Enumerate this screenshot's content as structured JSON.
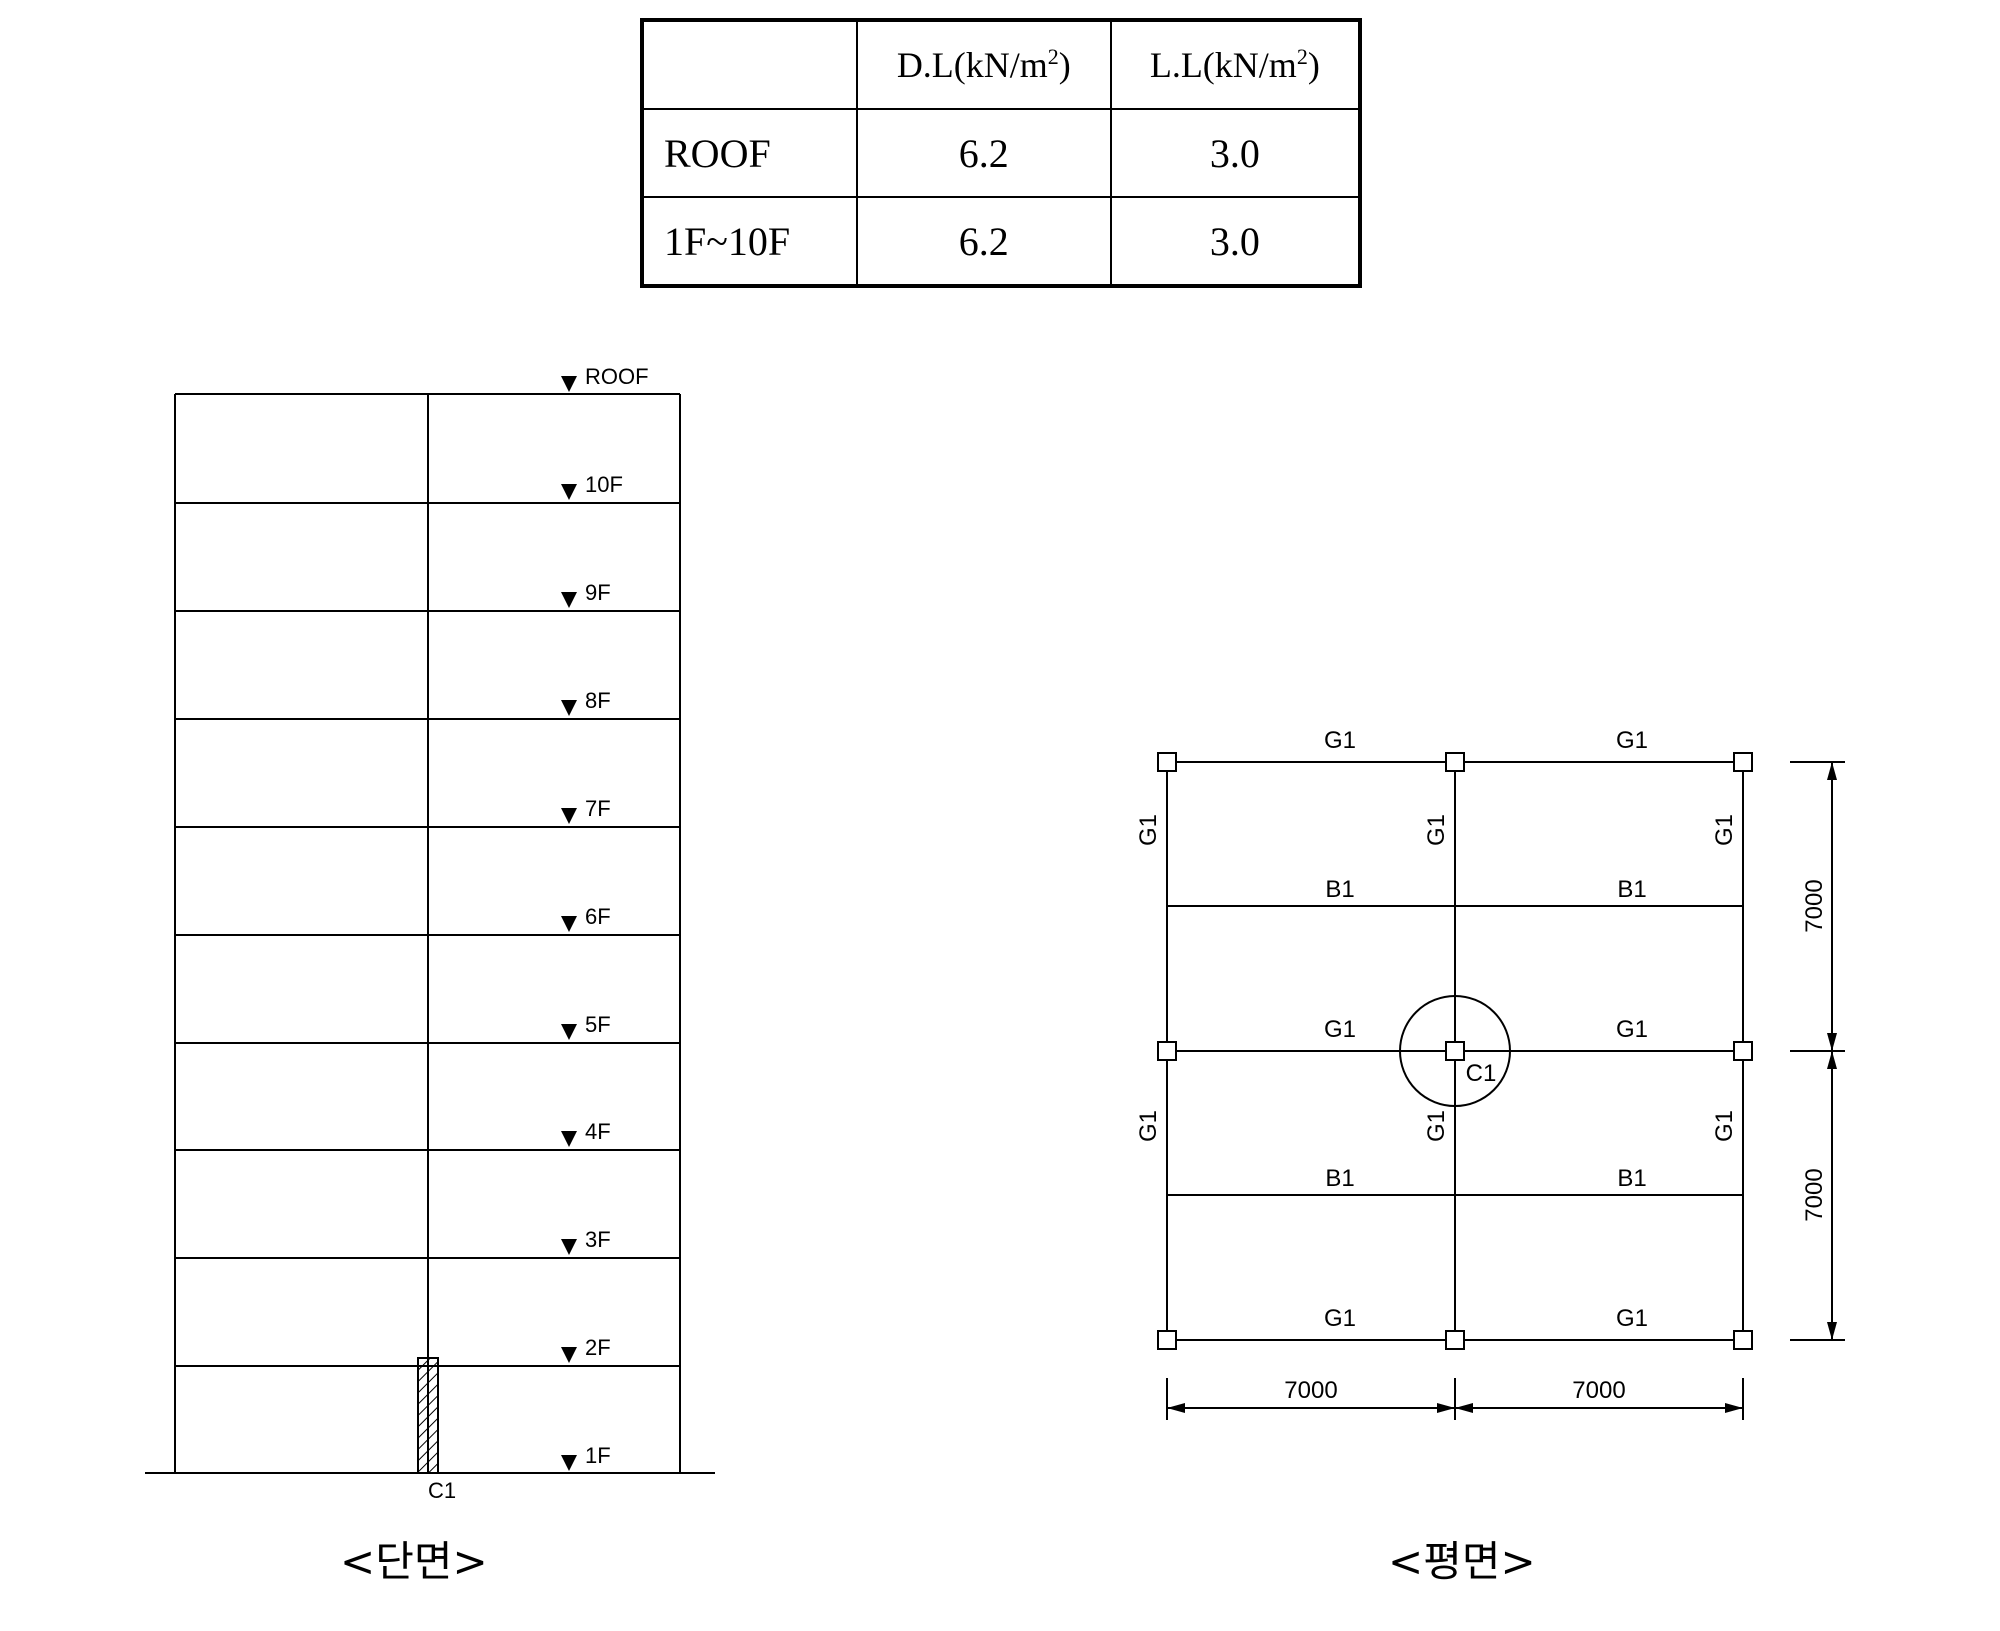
{
  "load_table": {
    "headers": [
      "",
      "D.L(kN/m",
      "L.L(kN/m"
    ],
    "header_exponent": "2",
    "header_close": ")",
    "rows": [
      {
        "level": "ROOF",
        "dl": "6.2",
        "ll": "3.0"
      },
      {
        "level": "1F~10F",
        "dl": "6.2",
        "ll": "3.0"
      }
    ]
  },
  "section": {
    "floor_labels": [
      "ROOF",
      "10F",
      "9F",
      "8F",
      "7F",
      "6F",
      "5F",
      "4F",
      "3F",
      "2F",
      "1F"
    ],
    "column_label": "C1",
    "caption": "<단면>"
  },
  "plan": {
    "girder_label": "G1",
    "beam_label": "B1",
    "column_label": "C1",
    "spans_x": [
      "7000",
      "7000"
    ],
    "spans_y": [
      "7000",
      "7000"
    ],
    "caption": "<평면>"
  }
}
